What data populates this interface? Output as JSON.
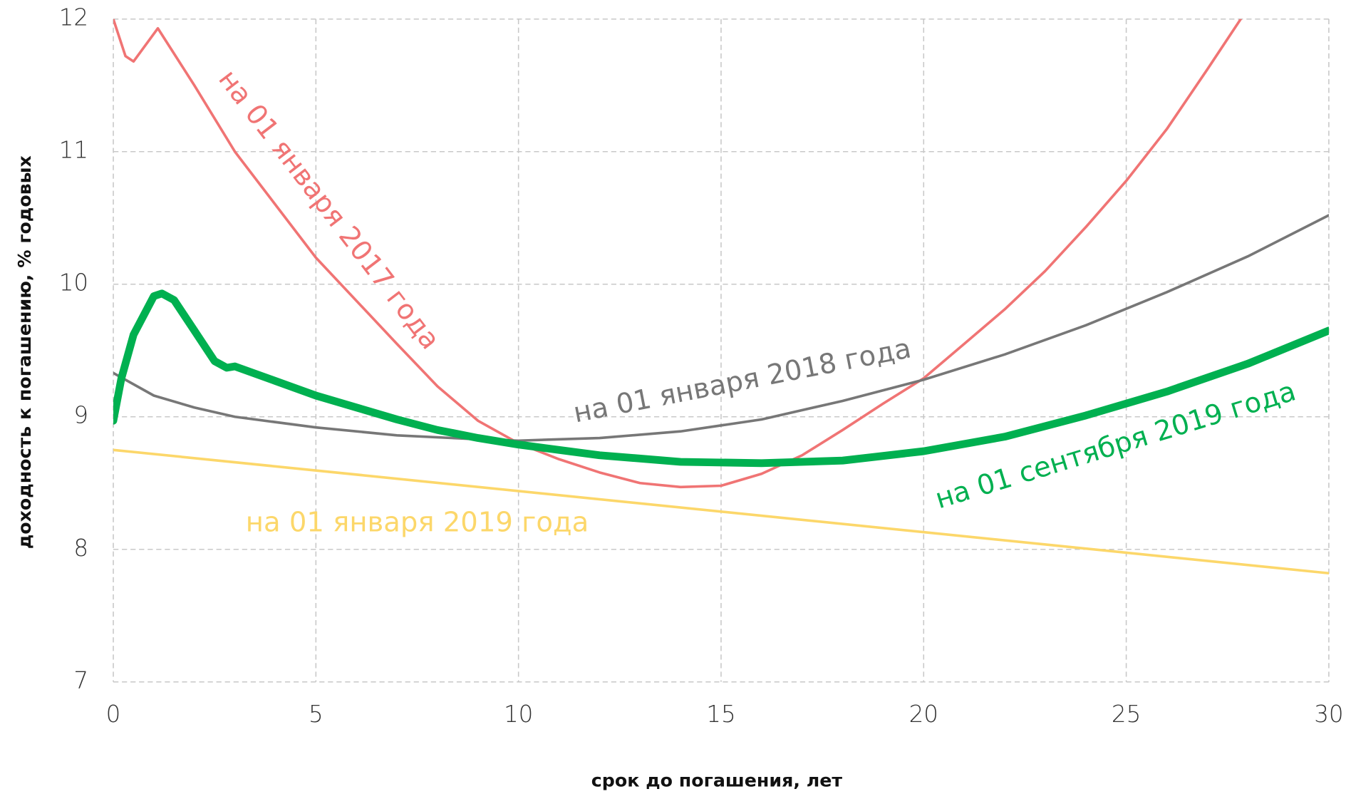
{
  "chart_data": {
    "type": "line",
    "xlabel": "срок до погашения, лет",
    "ylabel": "доходность к погашению, % годовых",
    "xlim": [
      0,
      30
    ],
    "xticks": [
      0,
      5,
      10,
      15,
      20,
      25,
      30
    ],
    "ylim": [
      7,
      12
    ],
    "yticks": [
      7,
      8,
      9,
      10,
      11,
      12
    ],
    "grid": true,
    "series": [
      {
        "name": "на 01 января 2017 года",
        "color": "#f07474",
        "width": 3,
        "x": [
          0,
          0.3,
          0.5,
          1.1,
          2,
          3,
          5,
          7,
          8,
          9,
          10,
          11,
          12,
          13,
          14,
          15,
          16,
          17,
          18,
          19,
          20,
          21,
          22,
          23,
          24,
          25,
          26,
          27,
          28
        ],
        "values": [
          12.0,
          11.72,
          11.68,
          11.93,
          11.5,
          11.0,
          10.2,
          9.55,
          9.23,
          8.97,
          8.8,
          8.68,
          8.58,
          8.5,
          8.47,
          8.48,
          8.57,
          8.71,
          8.9,
          9.1,
          9.29,
          9.55,
          9.81,
          10.1,
          10.43,
          10.78,
          11.17,
          11.62,
          12.08
        ]
      },
      {
        "name": "на 01 января 2018 года",
        "color": "#777777",
        "width": 3,
        "x": [
          0,
          1,
          2,
          3,
          5,
          7,
          9,
          10,
          12,
          14,
          16,
          18,
          20,
          22,
          24,
          26,
          28,
          30
        ],
        "values": [
          9.33,
          9.16,
          9.07,
          9.0,
          8.92,
          8.86,
          8.83,
          8.82,
          8.84,
          8.89,
          8.98,
          9.12,
          9.28,
          9.47,
          9.69,
          9.94,
          10.21,
          10.52
        ]
      },
      {
        "name": "на 01 января 2019 года",
        "color": "#fcd76a",
        "width": 3,
        "x": [
          0,
          30
        ],
        "values": [
          8.75,
          7.82
        ]
      },
      {
        "name": "на 01 сентября 2019 года",
        "color": "#00b050",
        "width": 9,
        "x": [
          0,
          0.2,
          0.5,
          1,
          1.2,
          1.5,
          2,
          2.5,
          2.8,
          3,
          4,
          5,
          6,
          7,
          8,
          9,
          10,
          12,
          14,
          16,
          18,
          20,
          22,
          24,
          26,
          28,
          30
        ],
        "values": [
          8.97,
          9.29,
          9.62,
          9.91,
          9.93,
          9.88,
          9.65,
          9.42,
          9.37,
          9.38,
          9.27,
          9.16,
          9.07,
          8.98,
          8.9,
          8.84,
          8.79,
          8.71,
          8.66,
          8.65,
          8.67,
          8.74,
          8.85,
          9.01,
          9.19,
          9.4,
          9.65
        ]
      }
    ]
  }
}
